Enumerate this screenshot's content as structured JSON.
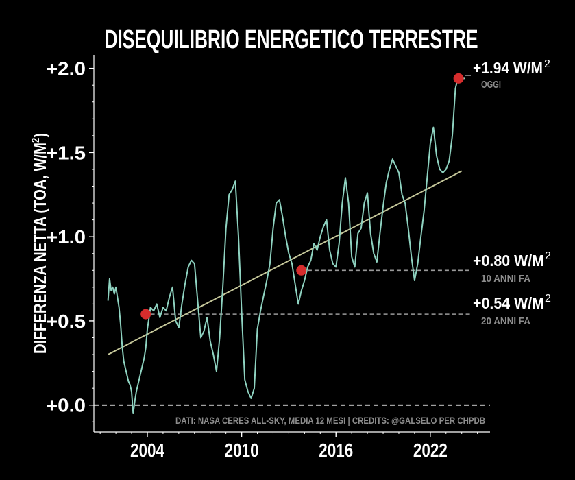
{
  "chart_data": {
    "type": "line",
    "title": "DISEQUILIBRIO ENERGETICO TERRESTRE",
    "ylabel_main": "DIFFERENZA NETTA (TOA, W/M",
    "ylabel_sup": "2",
    "ylabel_end": ")",
    "xlim": [
      2000.6,
      2025.8
    ],
    "ylim": [
      -0.16,
      2.08
    ],
    "x_ticks": [
      2004,
      2010,
      2016,
      2022
    ],
    "x_tick_labels": [
      "2004",
      "2010",
      "2016",
      "2022"
    ],
    "y_ticks": [
      0.0,
      0.5,
      1.0,
      1.5,
      2.0
    ],
    "y_tick_labels": [
      "+0.0",
      "+0.5",
      "+1.0",
      "+1.5",
      "+2.0"
    ],
    "colors": {
      "background": "#000000",
      "line": "#8fd3c1",
      "trend": "#c5c79a",
      "marker": "#d62d2d",
      "reference": "#9a9a9a",
      "text": "#ffffff",
      "muted": "#8c8c8c"
    },
    "series": [
      {
        "x": [
          2001.5,
          2001.6,
          2001.7,
          2001.8,
          2001.9,
          2002.0,
          2002.1,
          2002.2,
          2002.3,
          2002.4,
          2002.5,
          2002.6,
          2002.7,
          2002.8,
          2002.9,
          2003.0,
          2003.1,
          2003.2,
          2003.3,
          2003.4,
          2003.5,
          2003.6,
          2003.7,
          2003.8,
          2003.9,
          2004.0,
          2004.2,
          2004.4,
          2004.6,
          2004.8,
          2005.0,
          2005.2,
          2005.4,
          2005.6,
          2005.8,
          2006.0,
          2006.2,
          2006.4,
          2006.6,
          2006.8,
          2007.0,
          2007.2,
          2007.4,
          2007.6,
          2007.8,
          2008.0,
          2008.2,
          2008.4,
          2008.6,
          2008.8,
          2009.0,
          2009.2,
          2009.4,
          2009.6,
          2009.8,
          2010.0,
          2010.2,
          2010.4,
          2010.6,
          2010.8,
          2011.0,
          2011.2,
          2011.4,
          2011.6,
          2011.8,
          2012.0,
          2012.2,
          2012.4,
          2012.6,
          2012.8,
          2013.0,
          2013.2,
          2013.4,
          2013.6,
          2013.8,
          2014.0,
          2014.2,
          2014.4,
          2014.6,
          2014.8,
          2015.0,
          2015.2,
          2015.4,
          2015.6,
          2015.8,
          2016.0,
          2016.2,
          2016.4,
          2016.6,
          2016.8,
          2017.0,
          2017.2,
          2017.4,
          2017.6,
          2017.8,
          2018.0,
          2018.2,
          2018.4,
          2018.6,
          2018.8,
          2019.0,
          2019.2,
          2019.4,
          2019.6,
          2019.8,
          2020.0,
          2020.2,
          2020.4,
          2020.6,
          2020.8,
          2021.0,
          2021.2,
          2021.4,
          2021.6,
          2021.8,
          2022.0,
          2022.2,
          2022.4,
          2022.6,
          2022.8,
          2023.0,
          2023.2,
          2023.4,
          2023.6,
          2023.8,
          2024.0,
          2024.2
        ],
        "y": [
          0.62,
          0.75,
          0.68,
          0.7,
          0.66,
          0.7,
          0.64,
          0.58,
          0.48,
          0.35,
          0.26,
          0.22,
          0.18,
          0.14,
          0.12,
          0.08,
          -0.05,
          0.02,
          0.08,
          0.12,
          0.16,
          0.2,
          0.24,
          0.28,
          0.34,
          0.45,
          0.58,
          0.56,
          0.6,
          0.52,
          0.58,
          0.56,
          0.64,
          0.7,
          0.5,
          0.46,
          0.6,
          0.72,
          0.82,
          0.86,
          0.84,
          0.62,
          0.4,
          0.44,
          0.52,
          0.38,
          0.3,
          0.2,
          0.4,
          0.7,
          1.05,
          1.25,
          1.28,
          1.33,
          1.0,
          0.55,
          0.15,
          0.08,
          0.04,
          0.1,
          0.45,
          0.56,
          0.65,
          0.74,
          0.84,
          1.05,
          1.2,
          1.22,
          1.12,
          1.0,
          0.9,
          0.84,
          0.72,
          0.6,
          0.68,
          0.74,
          0.82,
          0.86,
          0.96,
          0.92,
          1.0,
          1.06,
          1.1,
          0.92,
          0.84,
          0.82,
          0.96,
          1.2,
          1.35,
          1.2,
          0.88,
          0.82,
          1.02,
          1.05,
          1.2,
          1.26,
          1.02,
          0.9,
          0.85,
          1.02,
          1.18,
          1.32,
          1.4,
          1.46,
          1.42,
          1.38,
          1.25,
          1.2,
          1.05,
          0.88,
          0.74,
          0.84,
          1.0,
          1.15,
          1.35,
          1.55,
          1.65,
          1.48,
          1.4,
          1.38,
          1.4,
          1.45,
          1.6,
          1.88,
          1.96,
          1.94,
          1.94
        ]
      }
    ],
    "trend": {
      "x": [
        2001.5,
        2024.0
      ],
      "y": [
        0.3,
        1.39
      ]
    },
    "markers": [
      {
        "x": 2003.9,
        "y": 0.54
      },
      {
        "x": 2013.8,
        "y": 0.8
      },
      {
        "x": 2023.8,
        "y": 1.94
      }
    ],
    "reference_lines": [
      {
        "y": 0.54,
        "x_start": 2004.2,
        "x_end": 2024.6
      },
      {
        "y": 0.8,
        "x_start": 2014.2,
        "x_end": 2024.6
      },
      {
        "y": 0.0,
        "x_start": 2000.6,
        "x_end": 2025.8
      }
    ],
    "annotations": [
      {
        "value": "+1.94 W/M",
        "sup": "2",
        "sub": "OGGI"
      },
      {
        "value": "+0.80 W/M",
        "sup": "2",
        "sub": "10 ANNI FA"
      },
      {
        "value": "+0.54 W/M",
        "sup": "2",
        "sub": "20 ANNI FA"
      }
    ],
    "source": "DATI: NASA CERES ALL-SKY, MEDIA 12 MESI  |  CREDITS: @GALSELO PER CHPDB"
  }
}
